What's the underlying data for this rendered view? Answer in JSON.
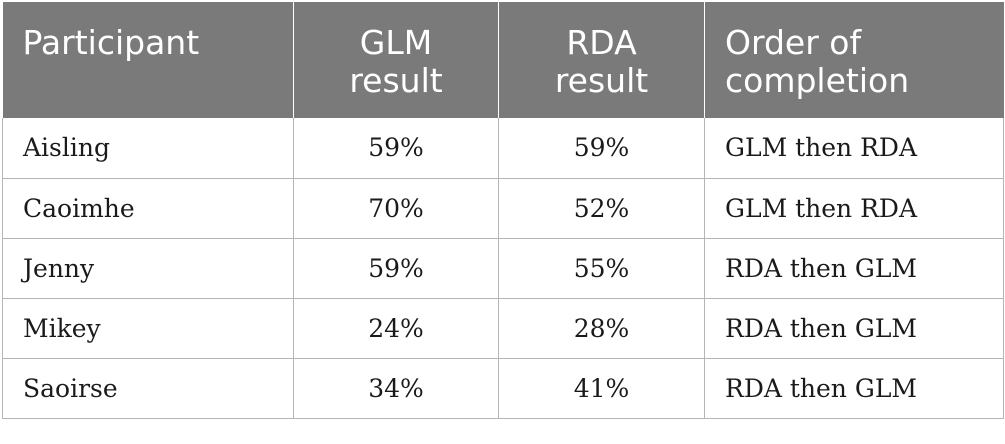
{
  "table": {
    "headers": {
      "participant": "Participant",
      "glm_line1": "GLM",
      "glm_line2": "result",
      "rda_line1": "RDA",
      "rda_line2": "result",
      "order_line1": "Order of",
      "order_line2": "completion"
    },
    "rows": [
      {
        "participant": "Aisling",
        "glm": "59%",
        "rda": "59%",
        "order": "GLM then RDA"
      },
      {
        "participant": "Caoimhe",
        "glm": "70%",
        "rda": "52%",
        "order": "GLM then RDA"
      },
      {
        "participant": "Jenny",
        "glm": "59%",
        "rda": "55%",
        "order": "RDA then GLM"
      },
      {
        "participant": "Mikey",
        "glm": "24%",
        "rda": "28%",
        "order": "RDA then GLM"
      },
      {
        "participant": "Saoirse",
        "glm": "34%",
        "rda": "41%",
        "order": "RDA then GLM"
      }
    ]
  },
  "colors": {
    "header_background": "#7a7a7a",
    "header_text": "#ffffff",
    "grid_lines": "#b5b5b5"
  }
}
